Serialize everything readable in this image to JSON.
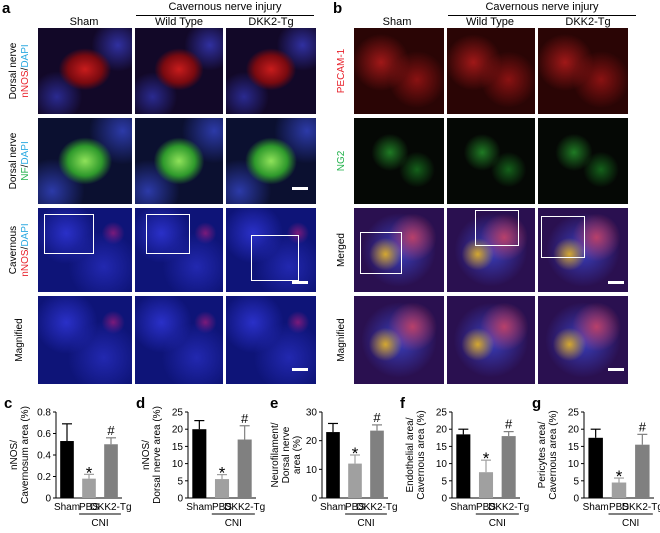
{
  "panel_a": {
    "letter": "a",
    "group_header": "Cavernous nerve injury",
    "columns": [
      "Sham",
      "Wild Type",
      "DKK2-Tg"
    ],
    "rows": [
      {
        "parts": [
          {
            "t": "Dorsal nerve",
            "c": "#000"
          },
          {
            "t": "\n"
          },
          {
            "t": "nNOS",
            "c": "#e8202a"
          },
          {
            "t": "/",
            "c": "#000"
          },
          {
            "t": "DAPI",
            "c": "#2aa8e0"
          }
        ],
        "bg": "red"
      },
      {
        "parts": [
          {
            "t": "Dorsal nerve",
            "c": "#000"
          },
          {
            "t": "\n"
          },
          {
            "t": "NF",
            "c": "#22b24c"
          },
          {
            "t": "/",
            "c": "#000"
          },
          {
            "t": "DAPI",
            "c": "#2aa8e0"
          }
        ],
        "bg": "green"
      },
      {
        "parts": [
          {
            "t": "Cavernous",
            "c": "#000"
          },
          {
            "t": "\n"
          },
          {
            "t": "nNOS",
            "c": "#e8202a"
          },
          {
            "t": "/",
            "c": "#000"
          },
          {
            "t": "DAPI",
            "c": "#2aa8e0"
          }
        ],
        "bg": "blue"
      },
      {
        "parts": [
          {
            "t": "Magnified",
            "c": "#000"
          }
        ],
        "bg": "blue"
      }
    ]
  },
  "panel_b": {
    "letter": "b",
    "group_header": "Cavernous nerve injury",
    "columns": [
      "Sham",
      "Wild Type",
      "DKK2-Tg"
    ],
    "rows": [
      {
        "parts": [
          {
            "t": "PECAM-1",
            "c": "#e8202a"
          }
        ],
        "bg": "red"
      },
      {
        "parts": [
          {
            "t": "NG2",
            "c": "#22b24c"
          }
        ],
        "bg": "black-green"
      },
      {
        "parts": [
          {
            "t": "Merged",
            "c": "#000"
          }
        ],
        "bg": "merged"
      },
      {
        "parts": [
          {
            "t": "Magnified",
            "c": "#000"
          }
        ],
        "bg": "merged"
      }
    ]
  },
  "chart_data": [
    {
      "letter": "c",
      "type": "bar",
      "ylabel": "nNOS/\nCavernosum area (%)",
      "categories": [
        "Sham",
        "PBS",
        "DKK2-Tg"
      ],
      "values": [
        0.53,
        0.18,
        0.5
      ],
      "errors": [
        0.16,
        0.04,
        0.06
      ],
      "ylim": [
        0,
        0.8
      ],
      "yticks": [
        "0",
        "0.2",
        "0.4",
        "0.6",
        "0.8"
      ],
      "sig": [
        "",
        "*",
        "#"
      ],
      "group_label": "CNI"
    },
    {
      "letter": "d",
      "type": "bar",
      "ylabel": "nNOS/\nDorsal nerve area (%)",
      "categories": [
        "Sham",
        "PBS",
        "DKK2-Tg"
      ],
      "values": [
        20,
        5.5,
        17
      ],
      "errors": [
        2.5,
        1.3,
        4
      ],
      "ylim": [
        0,
        25
      ],
      "yticks": [
        "0",
        "5",
        "10",
        "15",
        "20",
        "25"
      ],
      "sig": [
        "",
        "*",
        "#"
      ],
      "group_label": "CNI"
    },
    {
      "letter": "e",
      "type": "bar",
      "ylabel": "Neurofilament/\nDorsal nerve\narea (%)",
      "categories": [
        "Sham",
        "PBS",
        "DKK2-Tg"
      ],
      "values": [
        23,
        12,
        23.5
      ],
      "errors": [
        3,
        3,
        2
      ],
      "ylim": [
        0,
        30
      ],
      "yticks": [
        "0",
        "10",
        "20",
        "30"
      ],
      "sig": [
        "",
        "*",
        "#"
      ],
      "group_label": "CNI"
    },
    {
      "letter": "f",
      "type": "bar",
      "ylabel": "Endothelial area/\nCavernous area (%)",
      "categories": [
        "Sham",
        "PBS",
        "DKK2-Tg"
      ],
      "values": [
        18.5,
        7.5,
        18
      ],
      "errors": [
        1.5,
        3.5,
        1.3
      ],
      "ylim": [
        0,
        25
      ],
      "yticks": [
        "0",
        "5",
        "10",
        "15",
        "20",
        "25"
      ],
      "sig": [
        "",
        "*",
        "#"
      ],
      "group_label": "CNI"
    },
    {
      "letter": "g",
      "type": "bar",
      "ylabel": "Pericytes area/\nCavernous area (%)",
      "categories": [
        "Sham",
        "PBS",
        "DKK2-Tg"
      ],
      "values": [
        17.5,
        4.5,
        15.5
      ],
      "errors": [
        2.5,
        1.3,
        3
      ],
      "ylim": [
        0,
        25
      ],
      "yticks": [
        "0",
        "5",
        "10",
        "15",
        "20",
        "25"
      ],
      "sig": [
        "",
        "*",
        "#"
      ],
      "group_label": "CNI"
    }
  ]
}
